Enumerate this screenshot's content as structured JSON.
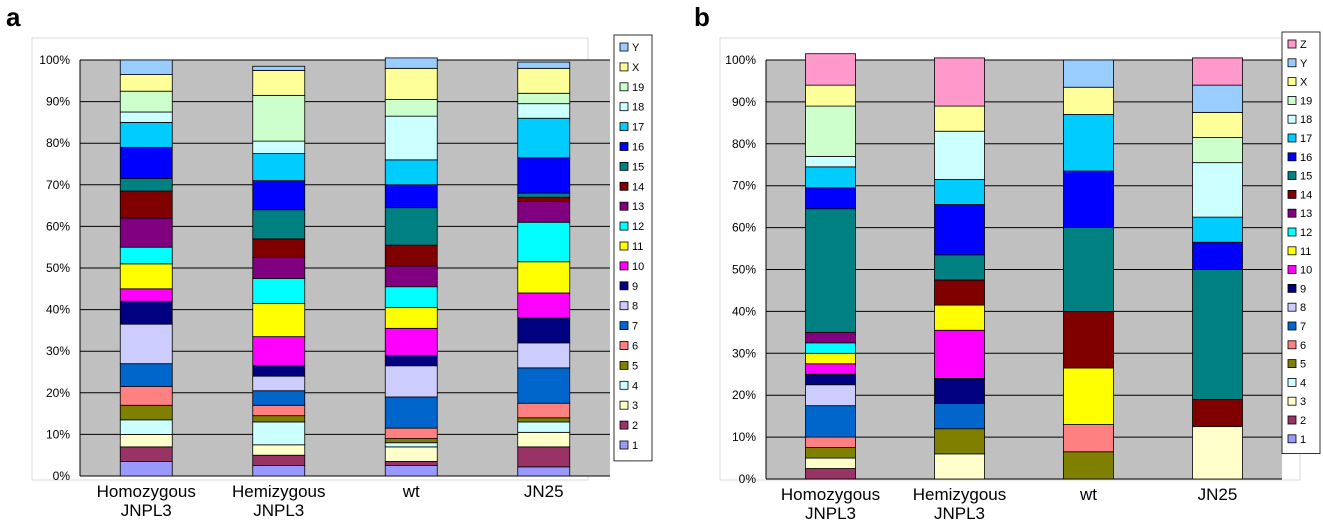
{
  "colors": {
    "1": "#9999FF",
    "2": "#993366",
    "3": "#FFFFCC",
    "4": "#CCFFFF",
    "5": "#808000",
    "6": "#FF8080",
    "7": "#0066CC",
    "8": "#CCCCFF",
    "9": "#000080",
    "10": "#FF00FF",
    "11": "#FFFF00",
    "12": "#00FFFF",
    "13": "#800080",
    "14": "#800000",
    "15": "#008080",
    "16": "#0000FF",
    "17": "#00CCFF",
    "18": "#CCFFFF",
    "19": "#CCFFCC",
    "X": "#FFFF99",
    "Y": "#99CCFF",
    "Z": "#FF99CC"
  },
  "chart_data": [
    {
      "panel_label": "a",
      "type": "bar",
      "stacked": true,
      "normalized": true,
      "ylim": [
        0,
        100
      ],
      "yticks": [
        "0%",
        "10%",
        "20%",
        "30%",
        "40%",
        "50%",
        "60%",
        "70%",
        "80%",
        "90%",
        "100%"
      ],
      "categories": [
        "Homozygous JNPL3",
        "Hemizygous JNPL3",
        "wt",
        "JN25"
      ],
      "legend": [
        "Y",
        "X",
        "19",
        "18",
        "17",
        "16",
        "15",
        "14",
        "13",
        "12",
        "11",
        "10",
        "9",
        "8",
        "7",
        "6",
        "5",
        "4",
        "3",
        "2",
        "1"
      ],
      "legend_position": "right",
      "series": [
        {
          "name": "1",
          "values": [
            3.5,
            2.5,
            2.5,
            2.2
          ]
        },
        {
          "name": "2",
          "values": [
            3.5,
            2.5,
            1.0,
            4.8
          ]
        },
        {
          "name": "3",
          "values": [
            3.0,
            2.5,
            3.5,
            3.5
          ]
        },
        {
          "name": "4",
          "values": [
            3.5,
            5.5,
            1.0,
            2.5
          ]
        },
        {
          "name": "5",
          "values": [
            3.5,
            1.5,
            1.0,
            1.0
          ]
        },
        {
          "name": "6",
          "values": [
            4.5,
            2.5,
            2.5,
            3.5
          ]
        },
        {
          "name": "7",
          "values": [
            5.5,
            3.5,
            7.5,
            8.5
          ]
        },
        {
          "name": "8",
          "values": [
            9.5,
            3.5,
            7.5,
            6.0
          ]
        },
        {
          "name": "9",
          "values": [
            5.5,
            2.5,
            2.5,
            6.0
          ]
        },
        {
          "name": "10",
          "values": [
            3.0,
            7.0,
            6.5,
            6.0
          ]
        },
        {
          "name": "11",
          "values": [
            6.0,
            8.0,
            5.0,
            7.5
          ]
        },
        {
          "name": "12",
          "values": [
            4.0,
            6.0,
            5.0,
            9.5
          ]
        },
        {
          "name": "13",
          "values": [
            7.0,
            5.0,
            5.0,
            5.0
          ]
        },
        {
          "name": "14",
          "values": [
            6.5,
            4.5,
            5.0,
            1.0
          ]
        },
        {
          "name": "15",
          "values": [
            3.0,
            7.0,
            9.0,
            1.0
          ]
        },
        {
          "name": "16",
          "values": [
            7.5,
            7.0,
            5.5,
            8.5
          ]
        },
        {
          "name": "17",
          "values": [
            6.0,
            6.5,
            6.0,
            9.5
          ]
        },
        {
          "name": "18",
          "values": [
            2.5,
            3.0,
            10.5,
            3.5
          ]
        },
        {
          "name": "19",
          "values": [
            5.0,
            11.0,
            4.0,
            2.5
          ]
        },
        {
          "name": "X",
          "values": [
            4.0,
            6.0,
            7.5,
            6.0
          ]
        },
        {
          "name": "Y",
          "values": [
            3.5,
            1.0,
            2.5,
            1.5
          ]
        }
      ]
    },
    {
      "panel_label": "b",
      "type": "bar",
      "stacked": true,
      "normalized": true,
      "ylim": [
        0,
        100
      ],
      "yticks": [
        "0%",
        "10%",
        "20%",
        "30%",
        "40%",
        "50%",
        "60%",
        "70%",
        "80%",
        "90%",
        "100%"
      ],
      "categories": [
        "Homozygous JNPL3",
        "Hemizygous JNPL3",
        "wt",
        "JN25"
      ],
      "legend": [
        "Z",
        "Y",
        "X",
        "19",
        "18",
        "17",
        "16",
        "15",
        "14",
        "13",
        "12",
        "11",
        "10",
        "9",
        "8",
        "7",
        "6",
        "5",
        "4",
        "3",
        "2",
        "1"
      ],
      "legend_position": "right",
      "series": [
        {
          "name": "1",
          "values": [
            0,
            0,
            0,
            0
          ]
        },
        {
          "name": "2",
          "values": [
            2.5,
            0,
            0,
            0
          ]
        },
        {
          "name": "3",
          "values": [
            2.5,
            6.0,
            0,
            12.5
          ]
        },
        {
          "name": "4",
          "values": [
            0,
            0,
            0,
            0
          ]
        },
        {
          "name": "5",
          "values": [
            2.5,
            6.0,
            6.5,
            0
          ]
        },
        {
          "name": "6",
          "values": [
            2.5,
            0,
            6.5,
            0
          ]
        },
        {
          "name": "7",
          "values": [
            7.5,
            6.0,
            0,
            0
          ]
        },
        {
          "name": "8",
          "values": [
            5.0,
            0,
            0,
            0
          ]
        },
        {
          "name": "9",
          "values": [
            2.5,
            6.0,
            0,
            0
          ]
        },
        {
          "name": "10",
          "values": [
            2.5,
            11.5,
            0,
            0
          ]
        },
        {
          "name": "11",
          "values": [
            2.5,
            6.0,
            13.5,
            0
          ]
        },
        {
          "name": "12",
          "values": [
            2.5,
            0,
            0,
            0
          ]
        },
        {
          "name": "13",
          "values": [
            2.5,
            0,
            0,
            0
          ]
        },
        {
          "name": "14",
          "values": [
            0,
            6.0,
            13.5,
            6.5
          ]
        },
        {
          "name": "15",
          "values": [
            29.5,
            6.0,
            20.0,
            31.0
          ]
        },
        {
          "name": "16",
          "values": [
            5.0,
            12.0,
            13.5,
            6.5
          ]
        },
        {
          "name": "17",
          "values": [
            5.0,
            6.0,
            13.5,
            6.0
          ]
        },
        {
          "name": "18",
          "values": [
            2.5,
            11.5,
            0,
            13.0
          ]
        },
        {
          "name": "19",
          "values": [
            12.0,
            0,
            0,
            6.0
          ]
        },
        {
          "name": "X",
          "values": [
            5.0,
            6.0,
            6.5,
            6.0
          ]
        },
        {
          "name": "Y",
          "values": [
            0,
            0,
            6.5,
            6.5
          ]
        },
        {
          "name": "Z",
          "values": [
            7.5,
            11.5,
            0,
            6.5
          ]
        }
      ]
    }
  ]
}
